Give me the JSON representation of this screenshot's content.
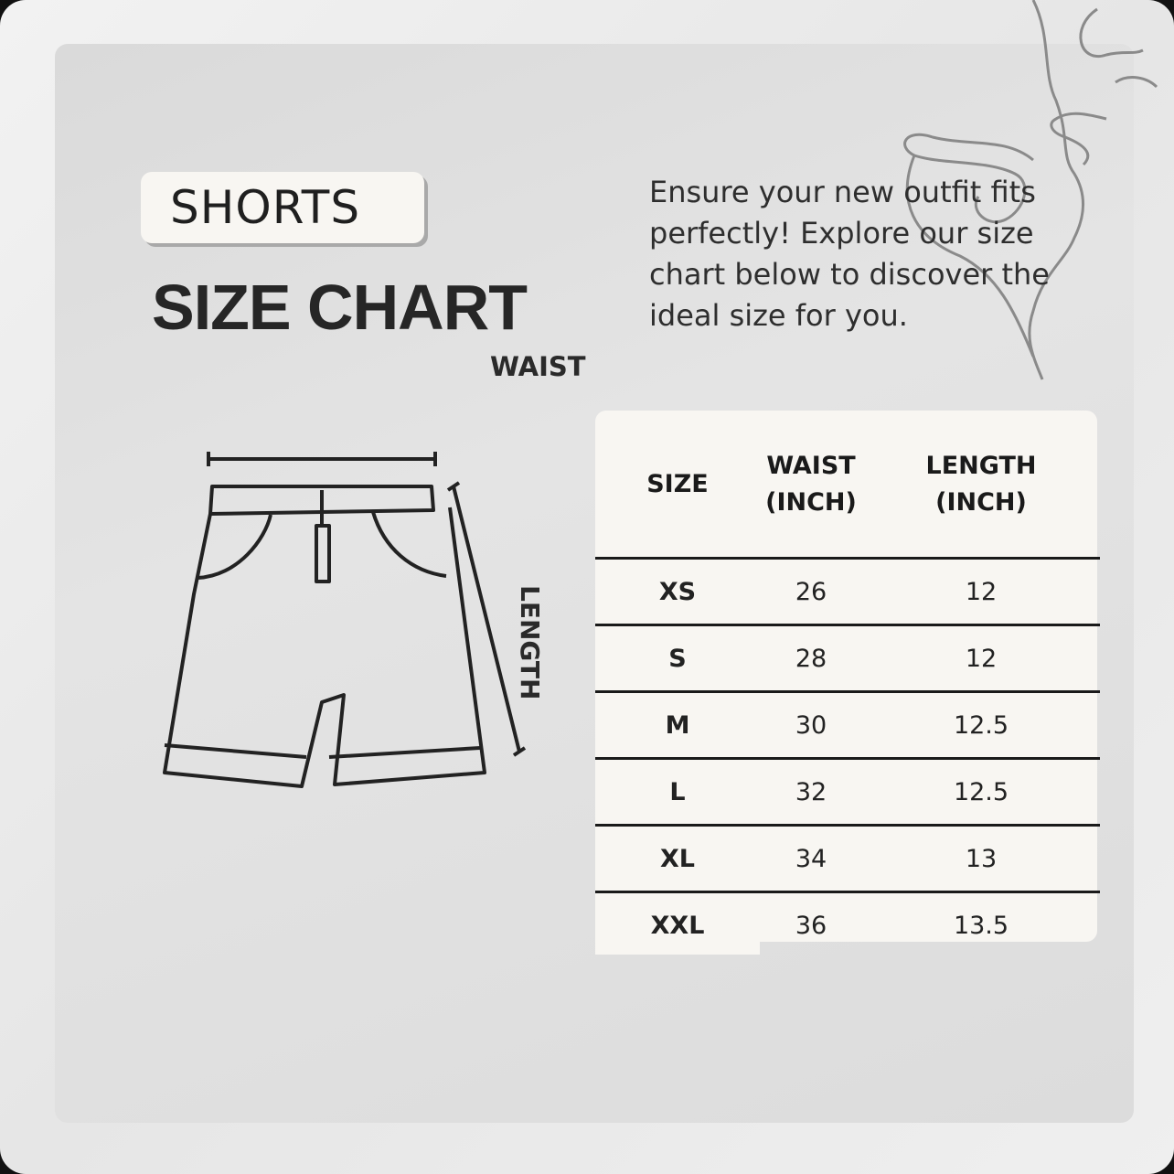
{
  "badge": "SHORTS",
  "title": "SIZE CHART",
  "intro": "Ensure your new outfit fits perfectly! Explore our size chart below to discover the ideal size for you.",
  "diagram": {
    "waist_label": "WAIST",
    "length_label": "LENGTH"
  },
  "table": {
    "headers": [
      "SIZE",
      "WAIST (INCH)",
      "LENGTH (INCH)"
    ],
    "rows": [
      {
        "size": "XS",
        "waist": "26",
        "length": "12"
      },
      {
        "size": "S",
        "waist": "28",
        "length": "12"
      },
      {
        "size": "M",
        "waist": "30",
        "length": "12.5"
      },
      {
        "size": "L",
        "waist": "32",
        "length": "12.5"
      },
      {
        "size": "XL",
        "waist": "34",
        "length": "13"
      },
      {
        "size": "XXL",
        "waist": "36",
        "length": "13.5"
      }
    ]
  },
  "colors": {
    "text": "#262626",
    "card": "#f8f6f2",
    "panel": "#dedede"
  }
}
